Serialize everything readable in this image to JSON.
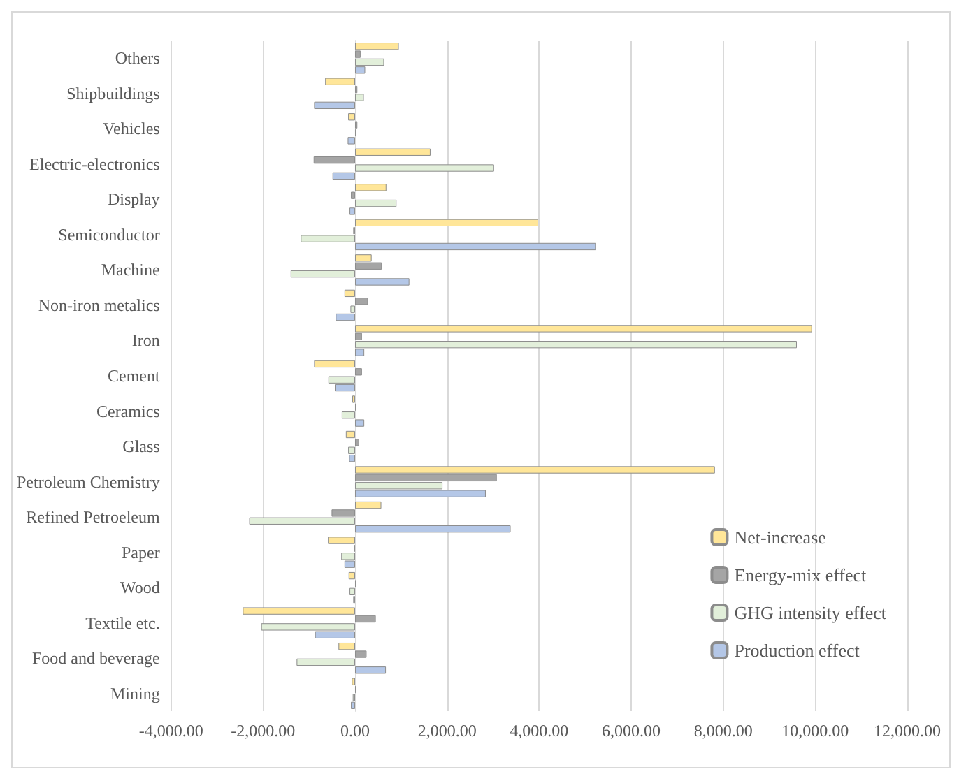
{
  "chart_data": {
    "type": "bar",
    "orientation": "horizontal",
    "categories": [
      "Others",
      "Shipbuildings",
      "Vehicles",
      "Electric-electronics",
      "Display",
      "Semiconductor",
      "Machine",
      "Non-iron metalics",
      "Iron",
      "Cement",
      "Ceramics",
      "Glass",
      "Petroleum Chemistry",
      "Refined Petroeleum",
      "Paper",
      "Wood",
      "Textile etc.",
      "Food and beverage",
      "Mining"
    ],
    "series": [
      {
        "name": "Net-increase",
        "color": "#ffe699",
        "values": [
          950,
          -650,
          -150,
          1640,
          680,
          3980,
          360,
          -230,
          9930,
          -890,
          -60,
          -200,
          7820,
          570,
          -590,
          -140,
          -2440,
          -360,
          -70
        ]
      },
      {
        "name": "Energy-mix effect",
        "color": "#a5a5a5",
        "values": [
          120,
          50,
          50,
          -900,
          -90,
          -40,
          580,
          280,
          150,
          150,
          30,
          90,
          3080,
          -510,
          -30,
          30,
          450,
          250,
          30
        ]
      },
      {
        "name": "GHG intensity effect",
        "color": "#e2efda",
        "values": [
          630,
          190,
          30,
          3020,
          900,
          -1180,
          -1400,
          -100,
          9600,
          -580,
          -290,
          -150,
          1900,
          -2300,
          -300,
          -120,
          -2040,
          -1270,
          -50
        ]
      },
      {
        "name": "Production effect",
        "color": "#b4c7e7",
        "values": [
          220,
          -890,
          -160,
          -490,
          -120,
          5230,
          1180,
          -420,
          200,
          -440,
          200,
          -130,
          2840,
          3380,
          -230,
          -40,
          -870,
          670,
          -90
        ]
      }
    ],
    "xlim": [
      -4000,
      12000
    ],
    "xticks": [
      {
        "value": -4000,
        "label": "-4,000.00"
      },
      {
        "value": -2000,
        "label": "-2,000.00"
      },
      {
        "value": 0,
        "label": "0.00"
      },
      {
        "value": 2000,
        "label": "2,000.00"
      },
      {
        "value": 4000,
        "label": "4,000.00"
      },
      {
        "value": 6000,
        "label": "6,000.00"
      },
      {
        "value": 8000,
        "label": "8,000.00"
      },
      {
        "value": 10000,
        "label": "10,000.00"
      },
      {
        "value": 12000,
        "label": "12,000.00"
      }
    ],
    "grid": "x",
    "legend": "bottom right"
  }
}
